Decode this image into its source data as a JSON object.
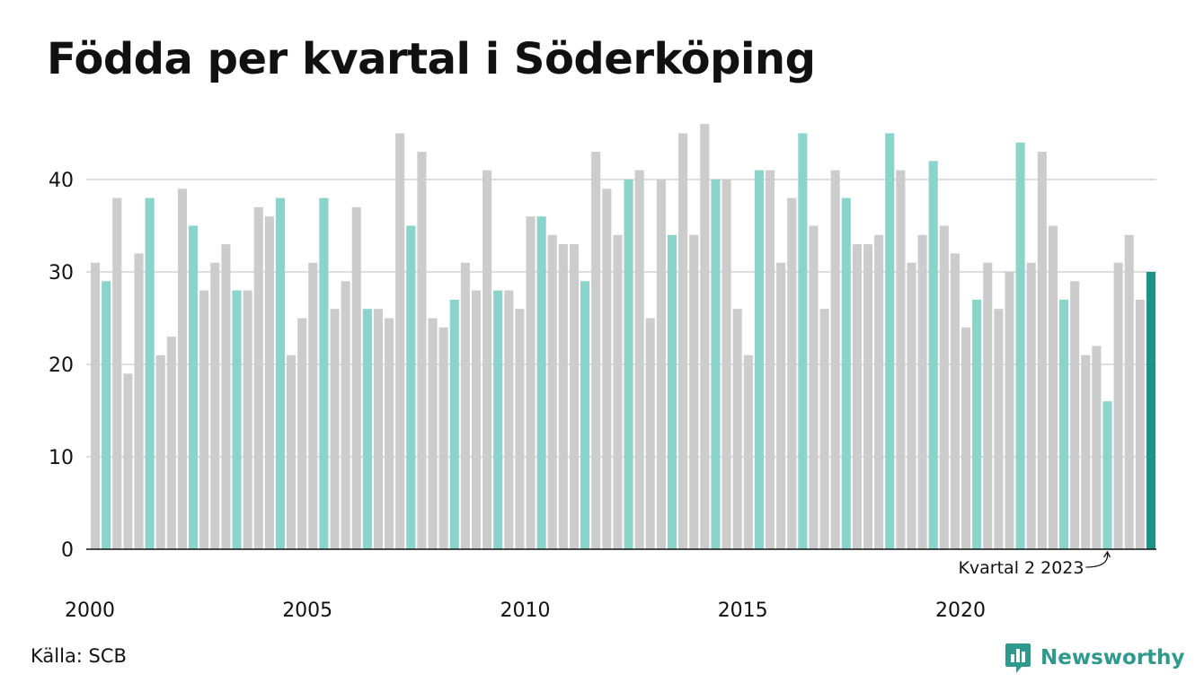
{
  "title": "Födda per kvartal i Söderköping",
  "source": "Källa: SCB",
  "brand": {
    "name": "Newsworthy",
    "icon": "newsworthy-logo-icon"
  },
  "colors": {
    "grey": "#cccccc",
    "highlight": "#8ad4cc",
    "latest": "#1d9385",
    "brand": "#2e9a8d",
    "grid": "#dedede",
    "axis": "#111111"
  },
  "annotation": {
    "text": "Kvartal 2 2023",
    "category": "2023 Q2"
  },
  "chart_data": {
    "type": "bar",
    "title": "Födda per kvartal i Söderköping",
    "xlabel": "",
    "ylabel": "",
    "ylim": [
      0,
      46
    ],
    "yticks": [
      0,
      10,
      20,
      30,
      40
    ],
    "xticks": [
      "2000",
      "2005",
      "2010",
      "2015",
      "2020"
    ],
    "grid": true,
    "categories": [
      "2000 Q1",
      "2000 Q2",
      "2000 Q3",
      "2000 Q4",
      "2001 Q1",
      "2001 Q2",
      "2001 Q3",
      "2001 Q4",
      "2002 Q1",
      "2002 Q2",
      "2002 Q3",
      "2002 Q4",
      "2003 Q1",
      "2003 Q2",
      "2003 Q3",
      "2003 Q4",
      "2004 Q1",
      "2004 Q2",
      "2004 Q3",
      "2004 Q4",
      "2005 Q1",
      "2005 Q2",
      "2005 Q3",
      "2005 Q4",
      "2006 Q1",
      "2006 Q2",
      "2006 Q3",
      "2006 Q4",
      "2007 Q1",
      "2007 Q2",
      "2007 Q3",
      "2007 Q4",
      "2008 Q1",
      "2008 Q2",
      "2008 Q3",
      "2008 Q4",
      "2009 Q1",
      "2009 Q2",
      "2009 Q3",
      "2009 Q4",
      "2010 Q1",
      "2010 Q2",
      "2010 Q3",
      "2010 Q4",
      "2011 Q1",
      "2011 Q2",
      "2011 Q3",
      "2011 Q4",
      "2012 Q1",
      "2012 Q2",
      "2012 Q3",
      "2012 Q4",
      "2013 Q1",
      "2013 Q2",
      "2013 Q3",
      "2013 Q4",
      "2014 Q1",
      "2014 Q2",
      "2014 Q3",
      "2014 Q4",
      "2015 Q1",
      "2015 Q2",
      "2015 Q3",
      "2015 Q4",
      "2016 Q1",
      "2016 Q2",
      "2016 Q3",
      "2016 Q4",
      "2017 Q1",
      "2017 Q2",
      "2017 Q3",
      "2017 Q4",
      "2018 Q1",
      "2018 Q2",
      "2018 Q3",
      "2018 Q4",
      "2019 Q1",
      "2019 Q2",
      "2019 Q3",
      "2019 Q4",
      "2020 Q1",
      "2020 Q2",
      "2020 Q3",
      "2020 Q4",
      "2021 Q1",
      "2021 Q2",
      "2021 Q3",
      "2021 Q4",
      "2022 Q1",
      "2022 Q2",
      "2022 Q3",
      "2022 Q4",
      "2023 Q1",
      "2023 Q2",
      "2023 Q3",
      "2023 Q4",
      "2024 Q1",
      "2024 Q2"
    ],
    "values": [
      31,
      29,
      38,
      19,
      32,
      38,
      21,
      23,
      39,
      35,
      28,
      31,
      33,
      28,
      28,
      37,
      36,
      38,
      21,
      25,
      31,
      38,
      26,
      29,
      37,
      26,
      26,
      25,
      45,
      35,
      43,
      25,
      24,
      27,
      31,
      28,
      41,
      28,
      28,
      26,
      36,
      36,
      34,
      33,
      33,
      29,
      43,
      39,
      34,
      40,
      41,
      25,
      40,
      34,
      45,
      34,
      46,
      40,
      40,
      26,
      21,
      41,
      41,
      31,
      38,
      45,
      35,
      26,
      41,
      38,
      33,
      33,
      34,
      45,
      41,
      31,
      34,
      42,
      35,
      32,
      24,
      27,
      31,
      26,
      30,
      44,
      31,
      43,
      35,
      27,
      29,
      21,
      22,
      16,
      31,
      34,
      27,
      30
    ],
    "highlight_quarter": "Q2",
    "latest_category": "2024 Q2"
  }
}
